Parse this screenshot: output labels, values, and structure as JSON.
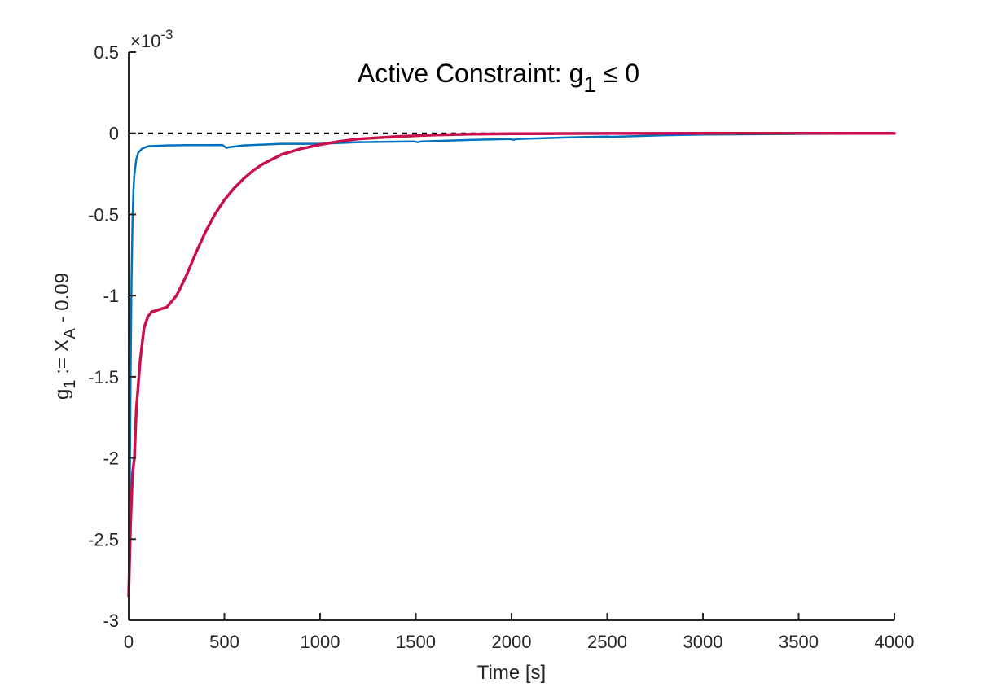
{
  "chart_data": {
    "type": "line",
    "title": "Active Constraint: g",
    "title_subscript": "1",
    "title_suffix": " ≤ 0",
    "xlabel": "Time [s]",
    "ylabel": "g",
    "ylabel_subscript_1": "1",
    "ylabel_middle": " := X",
    "ylabel_subscript_2": "A",
    "ylabel_suffix": " - 0.09",
    "y_exponent_base": "×10",
    "y_exponent_power": "-3",
    "xlim": [
      0,
      4000
    ],
    "ylim": [
      -3,
      0.5
    ],
    "x_ticks": [
      0,
      500,
      1000,
      1500,
      2000,
      2500,
      3000,
      3500,
      4000
    ],
    "x_tick_labels": [
      "0",
      "500",
      "1000",
      "1500",
      "2000",
      "2500",
      "3000",
      "3500",
      "4000"
    ],
    "y_ticks": [
      -3,
      -2.5,
      -2,
      -1.5,
      -1,
      -0.5,
      0,
      0.5
    ],
    "y_tick_labels": [
      "-3",
      "-2.5",
      "-2",
      "-1.5",
      "-1",
      "-0.5",
      "0",
      "0.5"
    ],
    "grid": false,
    "reference_line": {
      "y": 0,
      "style": "dashed",
      "color": "#000000"
    },
    "series": [
      {
        "color": "#0072bd",
        "points": [
          [
            0,
            -2.85
          ],
          [
            5,
            -2.3
          ],
          [
            10,
            -1.5
          ],
          [
            15,
            -0.9
          ],
          [
            20,
            -0.55
          ],
          [
            25,
            -0.35
          ],
          [
            30,
            -0.25
          ],
          [
            40,
            -0.16
          ],
          [
            50,
            -0.12
          ],
          [
            70,
            -0.095
          ],
          [
            100,
            -0.08
          ],
          [
            200,
            -0.075
          ],
          [
            300,
            -0.073
          ],
          [
            400,
            -0.073
          ],
          [
            490,
            -0.072
          ],
          [
            510,
            -0.09
          ],
          [
            530,
            -0.085
          ],
          [
            600,
            -0.075
          ],
          [
            800,
            -0.065
          ],
          [
            1000,
            -0.065
          ],
          [
            1200,
            -0.055
          ],
          [
            1490,
            -0.05
          ],
          [
            1510,
            -0.055
          ],
          [
            1530,
            -0.05
          ],
          [
            1800,
            -0.04
          ],
          [
            1990,
            -0.035
          ],
          [
            2010,
            -0.04
          ],
          [
            2030,
            -0.035
          ],
          [
            2300,
            -0.025
          ],
          [
            2500,
            -0.02
          ],
          [
            2520,
            -0.022
          ],
          [
            2800,
            -0.012
          ],
          [
            3000,
            -0.008
          ],
          [
            3500,
            -0.004
          ],
          [
            4000,
            -0.002
          ]
        ]
      },
      {
        "color": "#c8104f",
        "points": [
          [
            0,
            -2.85
          ],
          [
            10,
            -2.4
          ],
          [
            20,
            -2.1
          ],
          [
            30,
            -2.0
          ],
          [
            40,
            -1.7
          ],
          [
            50,
            -1.55
          ],
          [
            60,
            -1.4
          ],
          [
            70,
            -1.3
          ],
          [
            80,
            -1.2
          ],
          [
            100,
            -1.13
          ],
          [
            120,
            -1.1
          ],
          [
            150,
            -1.09
          ],
          [
            200,
            -1.07
          ],
          [
            250,
            -1.0
          ],
          [
            300,
            -0.88
          ],
          [
            350,
            -0.74
          ],
          [
            400,
            -0.61
          ],
          [
            450,
            -0.5
          ],
          [
            500,
            -0.41
          ],
          [
            550,
            -0.34
          ],
          [
            600,
            -0.28
          ],
          [
            650,
            -0.23
          ],
          [
            700,
            -0.19
          ],
          [
            750,
            -0.16
          ],
          [
            800,
            -0.13
          ],
          [
            900,
            -0.095
          ],
          [
            1000,
            -0.07
          ],
          [
            1100,
            -0.05
          ],
          [
            1200,
            -0.035
          ],
          [
            1400,
            -0.02
          ],
          [
            1600,
            -0.01
          ],
          [
            1800,
            -0.005
          ],
          [
            2000,
            -0.003
          ],
          [
            2500,
            -0.001
          ],
          [
            3000,
            0
          ],
          [
            4000,
            0
          ]
        ]
      }
    ]
  }
}
